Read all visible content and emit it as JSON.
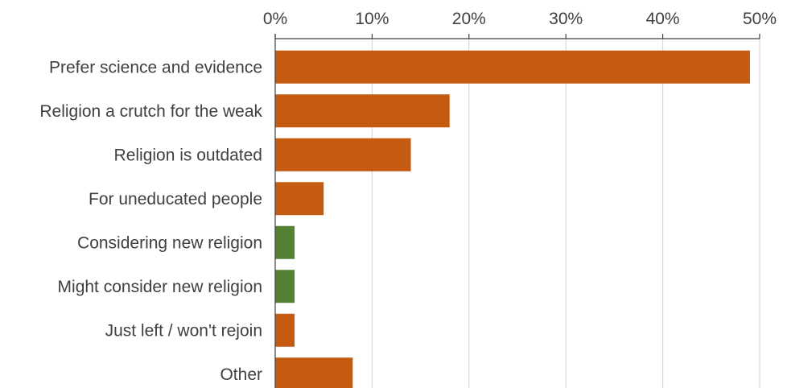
{
  "chart_data": {
    "type": "bar",
    "orientation": "horizontal",
    "categories": [
      "Prefer science and evidence",
      "Religion a crutch for the weak",
      "Religion is outdated",
      "For uneducated people",
      "Considering new religion",
      "Might consider new religion",
      "Just left / won't rejoin",
      "Other"
    ],
    "values": [
      49,
      18,
      14,
      5,
      2,
      2,
      2,
      8
    ],
    "bar_colors": [
      "#c55a11",
      "#c55a11",
      "#c55a11",
      "#c55a11",
      "#548235",
      "#548235",
      "#c55a11",
      "#c55a11"
    ],
    "xlim": [
      0,
      50
    ],
    "xticks": [
      0,
      10,
      20,
      30,
      40,
      50
    ],
    "xtick_labels": [
      "0%",
      "10%",
      "20%",
      "30%",
      "40%",
      "50%"
    ],
    "x_axis_position": "top",
    "grid": true,
    "legend": "none"
  }
}
